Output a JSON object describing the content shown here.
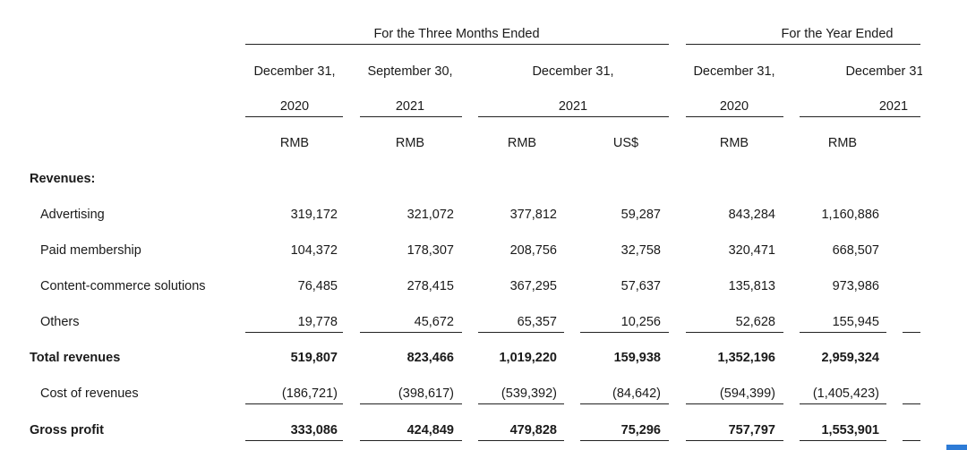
{
  "headers": {
    "period_groups": [
      "For the Three Months Ended",
      "For the Year Ended"
    ],
    "dates": [
      "December 31,",
      "September 30,",
      "December 31,",
      "December 31,",
      "December 31,"
    ],
    "years": [
      "2020",
      "2021",
      "2021",
      "2020",
      "2021"
    ],
    "currencies": [
      "RMB",
      "RMB",
      "RMB",
      "US$",
      "RMB",
      "RMB"
    ]
  },
  "table": {
    "section_label": "Revenues:",
    "revenue_items": [
      {
        "label": "Advertising",
        "values": [
          "319,172",
          "321,072",
          "377,812",
          "59,287",
          "843,284",
          "1,160,886"
        ]
      },
      {
        "label": "Paid membership",
        "values": [
          "104,372",
          "178,307",
          "208,756",
          "32,758",
          "320,471",
          "668,507"
        ]
      },
      {
        "label": "Content-commerce solutions",
        "values": [
          "76,485",
          "278,415",
          "367,295",
          "57,637",
          "135,813",
          "973,986"
        ]
      },
      {
        "label": "Others",
        "values": [
          "19,778",
          "45,672",
          "65,357",
          "10,256",
          "52,628",
          "155,945"
        ]
      }
    ],
    "total_revenues": {
      "label": "Total revenues",
      "values": [
        "519,807",
        "823,466",
        "1,019,220",
        "159,938",
        "1,352,196",
        "2,959,324"
      ]
    },
    "cost_of_revenues": {
      "label": "Cost of revenues",
      "values": [
        "(186,721)",
        "(398,617)",
        "(539,392)",
        "(84,642)",
        "(594,399)",
        "(1,405,423)"
      ]
    },
    "gross_profit": {
      "label": "Gross profit",
      "values": [
        "333,086",
        "424,849",
        "479,828",
        "75,296",
        "757,797",
        "1,553,901"
      ]
    }
  }
}
